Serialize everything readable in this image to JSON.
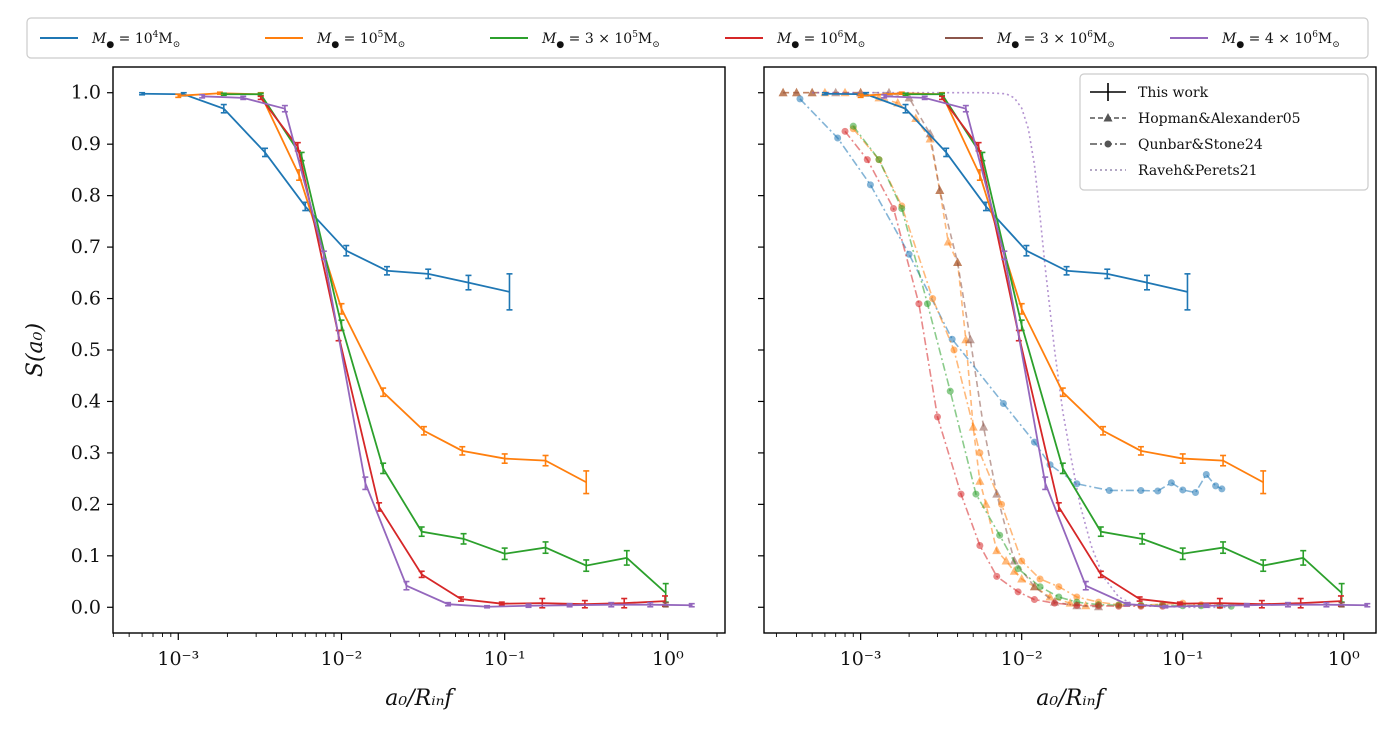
{
  "chart_data": [
    {
      "type": "line",
      "panel": "left",
      "xscale": "log",
      "xlim_log10": [
        -3.4,
        0.35
      ],
      "ylim": [
        -0.05,
        1.05
      ],
      "xlabel": "a₀/Rᵢₙf",
      "ylabel": "S(a₀)",
      "x_ticks": [
        0.001,
        0.01,
        0.1,
        1
      ],
      "x_tick_labels": [
        "10⁻³",
        "10⁻²",
        "10⁻¹",
        "10⁰"
      ],
      "y_ticks": [
        0.0,
        0.1,
        0.2,
        0.3,
        0.4,
        0.5,
        0.6,
        0.7,
        0.8,
        0.9,
        1.0
      ],
      "y_tick_labels": [
        "0.0",
        "0.1",
        "0.2",
        "0.3",
        "0.4",
        "0.5",
        "0.6",
        "0.7",
        "0.8",
        "0.9",
        "1.0"
      ],
      "series": [
        {
          "name": "M● = 10⁴ M⊙",
          "color": "#1f77b4",
          "x": [
            0.0006,
            0.00108,
            0.0019,
            0.0034,
            0.006,
            0.0107,
            0.019,
            0.034,
            0.06,
            0.107
          ],
          "y": [
            0.998,
            0.997,
            0.969,
            0.884,
            0.779,
            0.693,
            0.654,
            0.648,
            0.631,
            0.613
          ],
          "err": [
            0.002,
            0.003,
            0.008,
            0.008,
            0.008,
            0.01,
            0.008,
            0.009,
            0.014,
            0.035
          ]
        },
        {
          "name": "M● = 10⁵ M⊙",
          "color": "#ff7f0e",
          "x": [
            0.001,
            0.0018,
            0.0032,
            0.0055,
            0.01,
            0.018,
            0.032,
            0.055,
            0.1,
            0.178,
            0.316
          ],
          "y": [
            0.994,
            0.999,
            0.997,
            0.84,
            0.58,
            0.418,
            0.343,
            0.304,
            0.289,
            0.285,
            0.243
          ],
          "err": [
            0.003,
            0.002,
            0.003,
            0.01,
            0.01,
            0.008,
            0.008,
            0.008,
            0.009,
            0.01,
            0.022
          ]
        },
        {
          "name": "M● = 3 × 10⁵ M⊙",
          "color": "#2ca02c",
          "x": [
            0.0019,
            0.0032,
            0.0057,
            0.01,
            0.018,
            0.031,
            0.056,
            0.1,
            0.178,
            0.316,
            0.56,
            0.97
          ],
          "y": [
            0.997,
            0.997,
            0.876,
            0.548,
            0.27,
            0.147,
            0.133,
            0.104,
            0.116,
            0.081,
            0.096,
            0.028
          ],
          "err": [
            0.002,
            0.002,
            0.008,
            0.01,
            0.01,
            0.009,
            0.01,
            0.011,
            0.011,
            0.011,
            0.014,
            0.018
          ]
        },
        {
          "name": "M● = 10⁶ M⊙",
          "color": "#d62728",
          "x": [
            0.0032,
            0.0054,
            0.0096,
            0.017,
            0.031,
            0.054,
            0.096,
            0.17,
            0.31,
            0.54,
            0.96
          ],
          "y": [
            0.99,
            0.895,
            0.528,
            0.195,
            0.064,
            0.016,
            0.007,
            0.008,
            0.006,
            0.008,
            0.012
          ],
          "err": [
            0.003,
            0.008,
            0.01,
            0.008,
            0.006,
            0.004,
            0.003,
            0.009,
            0.007,
            0.009,
            0.01
          ]
        },
        {
          "name": "M● = 3 × 10⁶ M⊙",
          "color": "#8c564b",
          "x": [
            0.97
          ],
          "y": [
            0.005
          ],
          "err": [
            0.004
          ]
        },
        {
          "name": "M● = 4 × 10⁶ M⊙",
          "color": "#9467bd",
          "x": [
            0.0014,
            0.0025,
            0.0045,
            0.0078,
            0.014,
            0.025,
            0.045,
            0.078,
            0.14,
            0.25,
            0.45,
            0.78,
            1.4
          ],
          "y": [
            0.993,
            0.99,
            0.969,
            0.684,
            0.241,
            0.042,
            0.006,
            0.001,
            0.003,
            0.004,
            0.005,
            0.005,
            0.004
          ],
          "err": [
            0.003,
            0.003,
            0.006,
            0.008,
            0.012,
            0.008,
            0.003,
            0.002,
            0.003,
            0.003,
            0.004,
            0.004,
            0.003
          ]
        }
      ]
    },
    {
      "type": "line",
      "panel": "right",
      "xscale": "log",
      "xlim_log10": [
        -3.6,
        0.2
      ],
      "ylim": [
        -0.05,
        1.05
      ],
      "xlabel": "a₀/Rᵢₙf",
      "x_ticks": [
        0.001,
        0.01,
        0.1,
        1
      ],
      "x_tick_labels": [
        "10⁻³",
        "10⁻²",
        "10⁻¹",
        "10⁰"
      ],
      "series_note": "same six 'This work' series as left panel, plus comparison curves",
      "comparison_series": [
        {
          "name": "Hopman&Alexander05 (10⁵)",
          "style": "dashed-triangle",
          "color": "#ff7f0e",
          "x": [
            0.00033,
            0.0004,
            0.0005,
            0.0006,
            0.0008,
            0.001,
            0.0013,
            0.0017,
            0.0022,
            0.0027,
            0.0031,
            0.0035,
            0.004,
            0.0045,
            0.005,
            0.0055,
            0.006,
            0.007,
            0.008,
            0.009,
            0.01,
            0.012,
            0.015,
            0.02,
            0.025
          ],
          "y": [
            1.0,
            1.0,
            1.0,
            1.0,
            1.0,
            1.0,
            0.99,
            0.98,
            0.95,
            0.91,
            0.81,
            0.71,
            0.67,
            0.52,
            0.35,
            0.245,
            0.2,
            0.11,
            0.09,
            0.07,
            0.055,
            0.04,
            0.02,
            0.008,
            0.003
          ]
        },
        {
          "name": "Hopman&Alexander05 (4×10⁶)",
          "style": "dashed-triangle",
          "color": "#8c564b",
          "x": [
            0.00033,
            0.0004,
            0.0005,
            0.0007,
            0.001,
            0.0015,
            0.002,
            0.0027,
            0.0031,
            0.004,
            0.0048,
            0.0058,
            0.007,
            0.009,
            0.012,
            0.016,
            0.022,
            0.03
          ],
          "y": [
            1.0,
            1.0,
            1.0,
            1.0,
            1.0,
            1.0,
            0.99,
            0.92,
            0.81,
            0.67,
            0.52,
            0.35,
            0.22,
            0.09,
            0.04,
            0.01,
            0.003,
            0.001
          ]
        },
        {
          "name": "Qunbar&Stone24 (10⁴)",
          "style": "dashdot-circle",
          "color": "#1f77b4",
          "x": [
            0.00042,
            0.00072,
            0.00115,
            0.002,
            0.0037,
            0.0077,
            0.012,
            0.015,
            0.022,
            0.035,
            0.055,
            0.07,
            0.085,
            0.1,
            0.12,
            0.14,
            0.16,
            0.175
          ],
          "y": [
            0.988,
            0.912,
            0.821,
            0.686,
            0.521,
            0.396,
            0.321,
            0.277,
            0.24,
            0.227,
            0.227,
            0.226,
            0.242,
            0.228,
            0.223,
            0.258,
            0.236,
            0.23
          ]
        },
        {
          "name": "Qunbar&Stone24 (10⁵)",
          "style": "dashdot-circle",
          "color": "#ff7f0e",
          "x": [
            0.0009,
            0.0013,
            0.0018,
            0.0028,
            0.0038,
            0.0055,
            0.0075,
            0.01,
            0.013,
            0.017,
            0.022,
            0.03,
            0.04,
            0.055,
            0.075,
            0.1,
            0.13,
            0.17
          ],
          "y": [
            0.93,
            0.87,
            0.78,
            0.6,
            0.5,
            0.3,
            0.2,
            0.09,
            0.055,
            0.04,
            0.02,
            0.01,
            0.005,
            0.004,
            0.006,
            0.008,
            0.005,
            0.004
          ]
        },
        {
          "name": "Qunbar&Stone24 (3×10⁵)",
          "style": "dashdot-circle",
          "color": "#2ca02c",
          "x": [
            0.0009,
            0.0013,
            0.0018,
            0.0026,
            0.0036,
            0.0052,
            0.0073,
            0.0095,
            0.013,
            0.017,
            0.022,
            0.03,
            0.04,
            0.055,
            0.075,
            0.1,
            0.13,
            0.17,
            0.2
          ],
          "y": [
            0.935,
            0.87,
            0.775,
            0.59,
            0.42,
            0.22,
            0.14,
            0.075,
            0.04,
            0.02,
            0.01,
            0.005,
            0.004,
            0.004,
            0.004,
            0.003,
            0.003,
            0.003,
            0.002
          ]
        },
        {
          "name": "Qunbar&Stone24 (10⁶)",
          "style": "dashdot-circle",
          "color": "#d62728",
          "x": [
            0.0008,
            0.0011,
            0.0016,
            0.0023,
            0.003,
            0.0042,
            0.0055,
            0.007,
            0.0095,
            0.012,
            0.016,
            0.022,
            0.03,
            0.04,
            0.055,
            0.075
          ],
          "y": [
            0.925,
            0.87,
            0.775,
            0.59,
            0.37,
            0.22,
            0.12,
            0.06,
            0.03,
            0.015,
            0.008,
            0.004,
            0.003,
            0.002,
            0.002,
            0.002
          ]
        },
        {
          "name": "Raveh&Perets21",
          "style": "dotted",
          "color": "#9467bd",
          "x": [
            0.0005,
            0.001,
            0.003,
            0.006,
            0.008,
            0.009,
            0.01,
            0.011,
            0.012,
            0.013,
            0.014,
            0.016,
            0.018,
            0.02,
            0.023,
            0.027,
            0.032,
            0.04,
            0.05,
            0.1,
            0.2
          ],
          "y": [
            1.0,
            1.0,
            1.0,
            1.0,
            0.998,
            0.99,
            0.97,
            0.93,
            0.86,
            0.76,
            0.66,
            0.5,
            0.38,
            0.3,
            0.2,
            0.12,
            0.06,
            0.02,
            0.005,
            0.0,
            0.0
          ]
        }
      ],
      "inset_legend": [
        {
          "label": "This work",
          "style": "errorbar"
        },
        {
          "label": "Hopman&Alexander05",
          "style": "dashed-triangle"
        },
        {
          "label": "Qunbar&Stone24",
          "style": "dashdot-circle"
        },
        {
          "label": "Raveh&Perets21",
          "style": "dotted"
        }
      ]
    }
  ],
  "legend": {
    "placement": "top",
    "entries": [
      {
        "prefix": "M",
        "sub": "●",
        "eq": " = 10",
        "sup": "4",
        "unit": "M",
        "usub": "⊙",
        "color": "#1f77b4"
      },
      {
        "prefix": "M",
        "sub": "●",
        "eq": " = 10",
        "sup": "5",
        "unit": "M",
        "usub": "⊙",
        "color": "#ff7f0e"
      },
      {
        "prefix": "M",
        "sub": "●",
        "eq": " = 3 × 10",
        "sup": "5",
        "unit": "M",
        "usub": "⊙",
        "color": "#2ca02c"
      },
      {
        "prefix": "M",
        "sub": "●",
        "eq": " = 10",
        "sup": "6",
        "unit": "M",
        "usub": "⊙",
        "color": "#d62728"
      },
      {
        "prefix": "M",
        "sub": "●",
        "eq": " = 3 × 10",
        "sup": "6",
        "unit": "M",
        "usub": "⊙",
        "color": "#8c564b"
      },
      {
        "prefix": "M",
        "sub": "●",
        "eq": " = 4 × 10",
        "sup": "6",
        "unit": "M",
        "usub": "⊙",
        "color": "#9467bd"
      }
    ]
  }
}
